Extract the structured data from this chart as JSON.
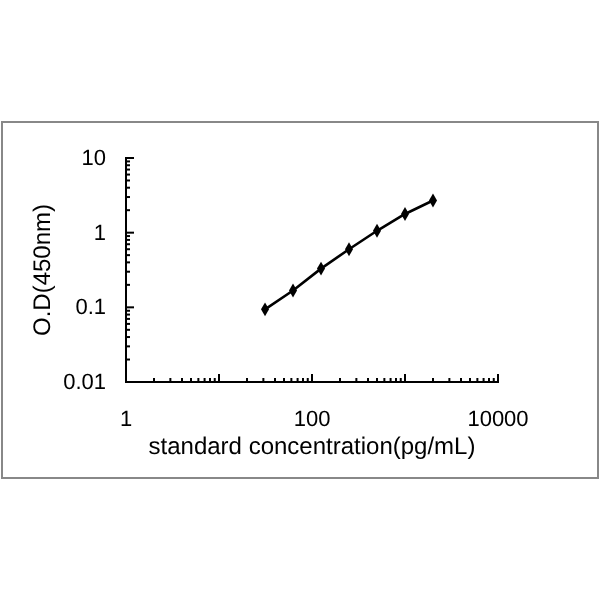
{
  "chart_data": {
    "type": "line",
    "xlabel": "standard concentration(pg/mL)",
    "ylabel": "O.D(450nm)",
    "log": "xy",
    "x": [
      31.25,
      62.5,
      125,
      250,
      500,
      1000,
      2000
    ],
    "series": [
      {
        "color": "#000000",
        "values": [
          0.094,
          0.168,
          0.33,
          0.6,
          1.06,
          1.78,
          2.7
        ]
      }
    ],
    "xlim": [
      1,
      10000
    ],
    "xticks": [
      1,
      {
        "value": 10,
        "label": null
      },
      100,
      {
        "value": 1000,
        "label": null
      },
      10000
    ],
    "ylim": [
      0.01,
      10
    ],
    "yticks": [
      0.01,
      0.1,
      1,
      10
    ],
    "marker": "diamond",
    "line_style": "solid",
    "grid": false
  }
}
